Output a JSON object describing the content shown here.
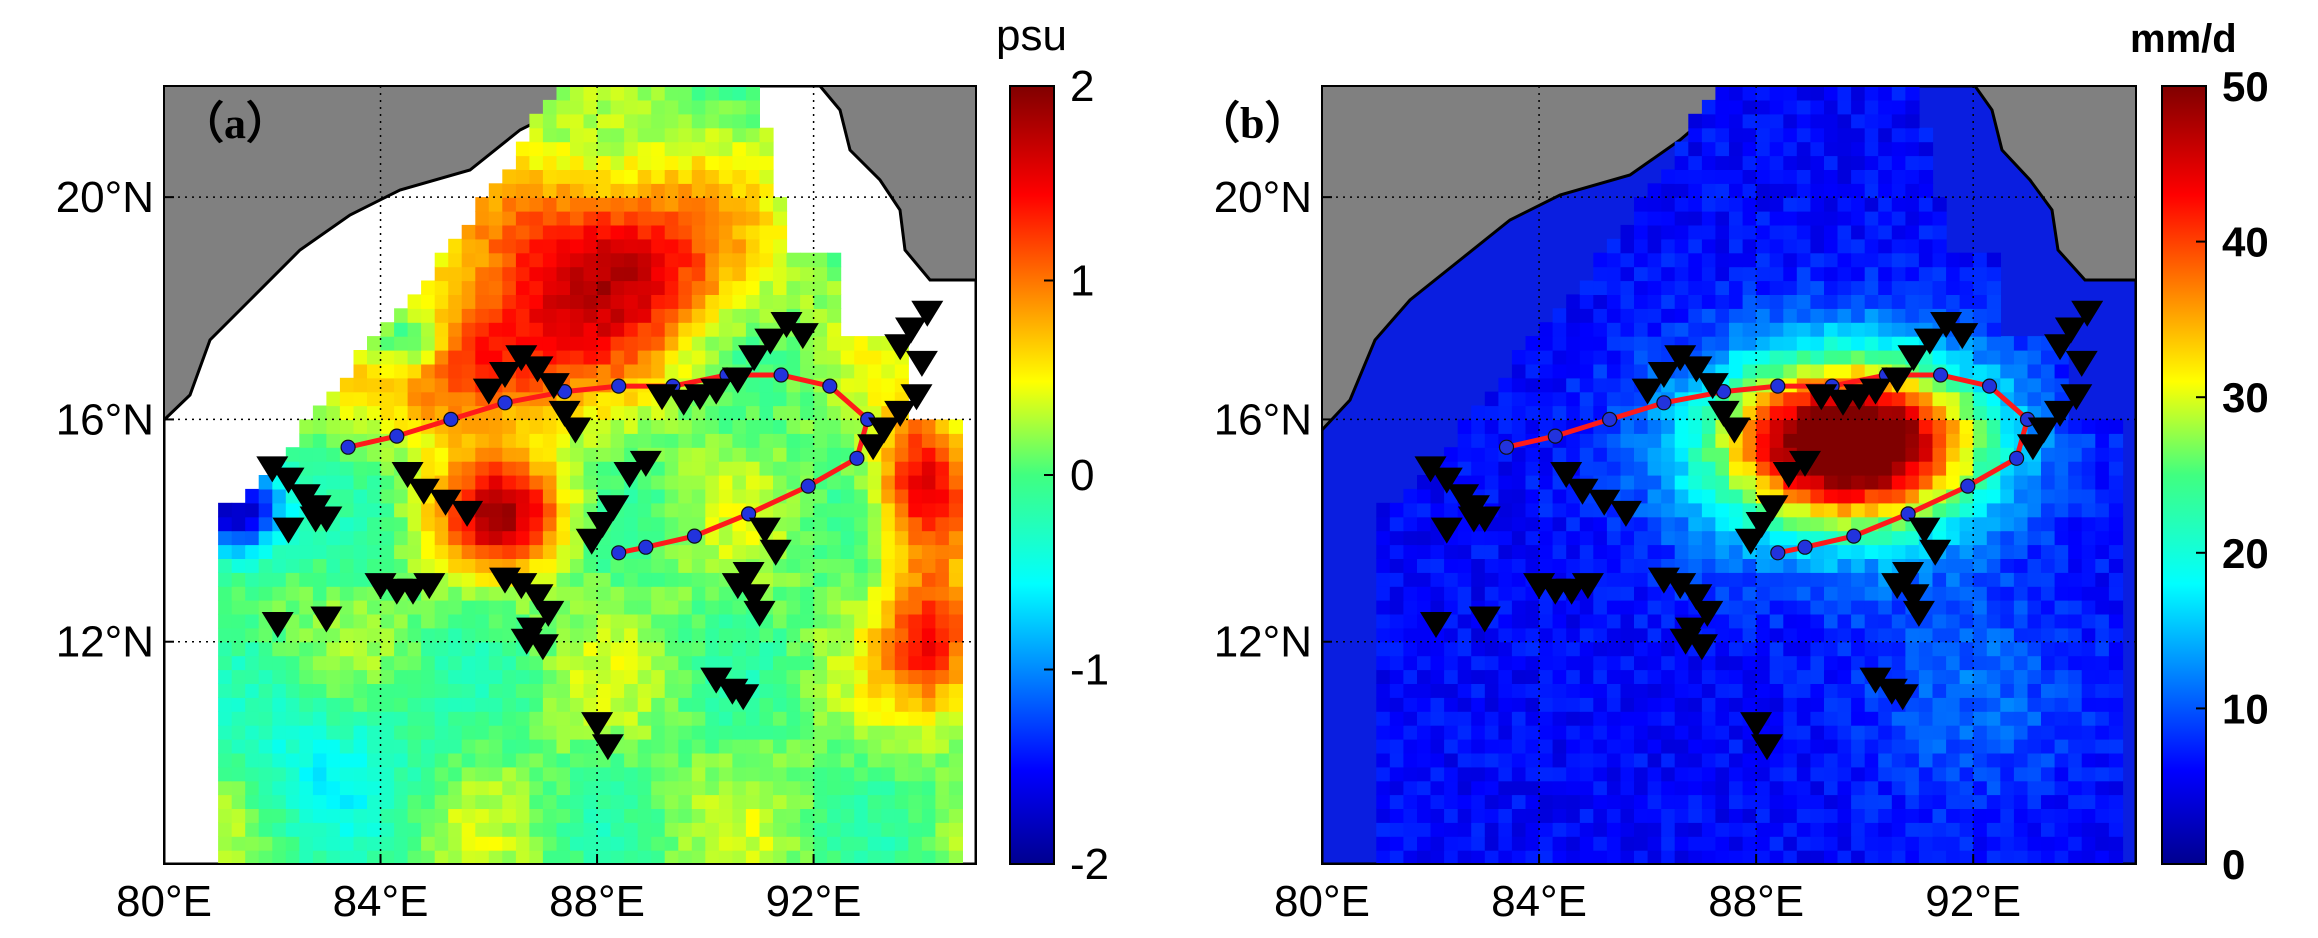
{
  "panels": [
    {
      "label": "（a）",
      "variable": "salinity",
      "colorbar": {
        "unit": "psu",
        "min": -2,
        "max": 2,
        "ticks": [
          "2",
          "1",
          "0",
          "-1",
          "-2"
        ],
        "tick_values": [
          2,
          1,
          0,
          -1,
          -2
        ]
      }
    },
    {
      "label": "（b）",
      "variable": "rain",
      "colorbar": {
        "unit": "mm/d",
        "min": 0,
        "max": 50,
        "ticks": [
          "50",
          "40",
          "30",
          "20",
          "10",
          "0"
        ],
        "tick_values": [
          50,
          40,
          30,
          20,
          10,
          0
        ]
      }
    }
  ],
  "axes": {
    "lon_range": [
      80,
      95
    ],
    "lat_range": [
      8,
      22
    ],
    "x_ticks": [
      "80°E",
      "84°E",
      "88°E",
      "92°E"
    ],
    "x_tick_values": [
      80,
      84,
      88,
      92
    ],
    "y_ticks": [
      "20°N",
      "16°N",
      "12°N"
    ],
    "y_tick_values": [
      20,
      16,
      12
    ],
    "grid": "dotted"
  },
  "colors": {
    "land": "#808080",
    "track_dot": "#2233dd",
    "track_line": "#ff1a1a",
    "station_marker": "#000000"
  },
  "chart_data": {
    "type": "heatmap",
    "cyclone_track": {
      "lon": [
        83.4,
        84.3,
        85.3,
        86.3,
        87.4,
        88.4,
        89.4,
        90.4,
        91.4,
        92.3,
        93.0,
        92.8,
        91.9,
        90.8,
        89.8,
        88.9,
        88.4
      ],
      "lat": [
        15.5,
        15.7,
        16.0,
        16.3,
        16.5,
        16.6,
        16.6,
        16.8,
        16.8,
        16.6,
        16.0,
        15.3,
        14.8,
        14.3,
        13.9,
        13.7,
        13.6
      ]
    },
    "stations": {
      "lon": [
        82.0,
        82.3,
        82.6,
        82.8,
        83.0,
        84.5,
        84.8,
        85.2,
        85.6,
        86.0,
        86.3,
        86.6,
        86.9,
        87.2,
        87.4,
        87.6,
        87.9,
        88.1,
        88.3,
        88.6,
        88.9,
        89.2,
        89.6,
        89.9,
        90.2,
        90.6,
        90.9,
        91.2,
        91.5,
        91.8,
        91.1,
        91.3,
        90.8,
        90.6,
        90.9,
        91.0,
        86.3,
        86.6,
        86.9,
        87.1,
        86.8,
        87.0,
        86.7,
        84.0,
        84.3,
        84.6,
        84.9,
        82.8,
        82.3,
        82.1,
        83.0,
        90.2,
        90.5,
        90.7,
        88.0,
        88.2,
        93.1,
        93.3,
        93.6,
        93.9,
        94.0,
        93.6,
        93.8,
        94.1
      ],
      "lat": [
        15.1,
        14.9,
        14.6,
        14.4,
        14.2,
        15.0,
        14.7,
        14.5,
        14.3,
        16.5,
        16.8,
        17.1,
        16.9,
        16.6,
        16.1,
        15.8,
        13.8,
        14.1,
        14.4,
        15.0,
        15.2,
        16.4,
        16.3,
        16.4,
        16.5,
        16.7,
        17.1,
        17.4,
        17.7,
        17.5,
        14.0,
        13.6,
        13.2,
        13.0,
        12.8,
        12.5,
        13.1,
        13.0,
        12.8,
        12.5,
        12.2,
        11.9,
        12.0,
        13.0,
        12.9,
        12.9,
        13.0,
        14.2,
        14.0,
        12.3,
        12.4,
        11.3,
        11.1,
        11.0,
        10.5,
        10.1,
        15.5,
        15.8,
        16.1,
        16.4,
        17.0,
        17.3,
        17.6,
        17.9
      ]
    }
  }
}
